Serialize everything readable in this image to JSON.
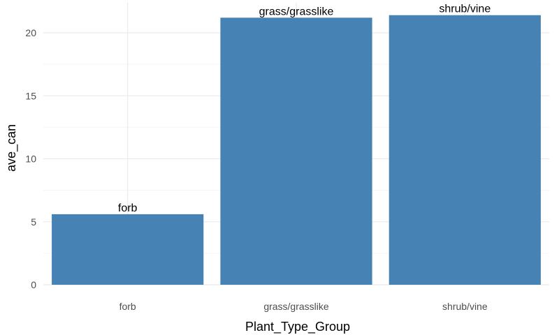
{
  "chart_data": {
    "type": "bar",
    "categories": [
      "forb",
      "grass/grasslike",
      "shrub/vine"
    ],
    "values": [
      5.6,
      21.2,
      21.4
    ],
    "data_labels": [
      "forb",
      "grass/grasslike",
      "shrub/vine"
    ],
    "xlabel": "Plant_Type_Group",
    "ylabel": "ave_can",
    "ylim": [
      0,
      22
    ],
    "yticks": [
      0,
      5,
      10,
      15,
      20
    ],
    "ytick_labels": [
      "0",
      "5",
      "10",
      "15",
      "20"
    ],
    "grid": true,
    "legend": "none",
    "colors": {
      "bar": "#4682B4",
      "grid_major": "#ebebeb",
      "grid_minor": "#f5f5f5"
    }
  }
}
